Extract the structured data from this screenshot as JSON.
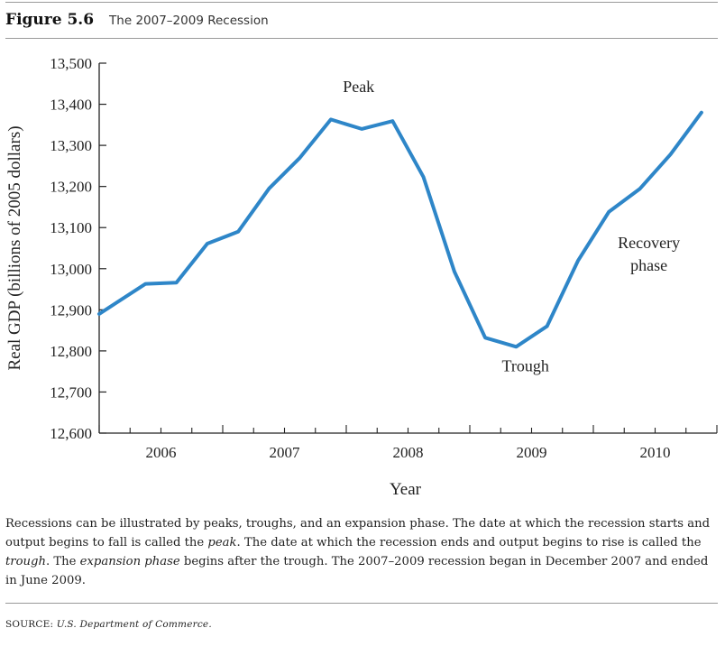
{
  "figure": {
    "label": "Figure 5.6",
    "title": "The 2007–2009 Recession"
  },
  "chart_data": {
    "type": "line",
    "title": "The 2007–2009 Recession",
    "xlabel": "Year",
    "ylabel": "Real GDP (billions of 2005 dollars)",
    "xlim": [
      2005.5,
      2010.5
    ],
    "ylim": [
      12600,
      13500
    ],
    "x_tick_labels": [
      "2006",
      "2007",
      "2008",
      "2009",
      "2010"
    ],
    "x_tick_values": [
      2006,
      2007,
      2008,
      2009,
      2010
    ],
    "y_ticks": [
      12600,
      12700,
      12800,
      12900,
      13000,
      13100,
      13200,
      13300,
      13400,
      13500
    ],
    "y_tick_labels": [
      "12,600",
      "12,700",
      "12,800",
      "12,900",
      "13,000",
      "13,100",
      "13,200",
      "13,300",
      "13,400",
      "13,500"
    ],
    "grid": false,
    "line_color": "#2e86c8",
    "series": [
      {
        "x": [
          2005.5,
          2005.875,
          2006.125,
          2006.375,
          2006.625,
          2006.875,
          2007.125,
          2007.375,
          2007.625,
          2007.875,
          2008.125,
          2008.375,
          2008.625,
          2008.875,
          2009.125,
          2009.375,
          2009.625,
          2009.875,
          2010.125,
          2010.375
        ],
        "y": [
          12890,
          12963,
          12966,
          13061,
          13090,
          13195,
          13270,
          13363,
          13340,
          13359,
          13223,
          12993,
          12832,
          12810,
          12860,
          13019,
          13138,
          13194,
          13278,
          13380
        ]
      }
    ],
    "annotations": [
      {
        "text": "Peak",
        "x": 2007.6,
        "y": 13430
      },
      {
        "text": "Trough",
        "x": 2008.95,
        "y": 12750
      },
      {
        "text": "Recovery",
        "x": 2009.95,
        "y": 13050
      },
      {
        "text": "phase",
        "x": 2009.95,
        "y": 12995
      }
    ]
  },
  "caption": {
    "p1": "Recessions can be illustrated by peaks, troughs, and an expansion phase. The date at which the recession starts and output begins to fall is called the ",
    "peak": "peak",
    "p2": ". The date at which the recession ends and output begins to rise is called the ",
    "trough": "trough",
    "p3": ". The ",
    "expansion": "expansion phase",
    "p4": " begins after the trough. The 2007–2009 recession began in December 2007 and ended in June 2009."
  },
  "source": {
    "label": "SOURCE: ",
    "text": "U.S. Department of Commerce."
  }
}
